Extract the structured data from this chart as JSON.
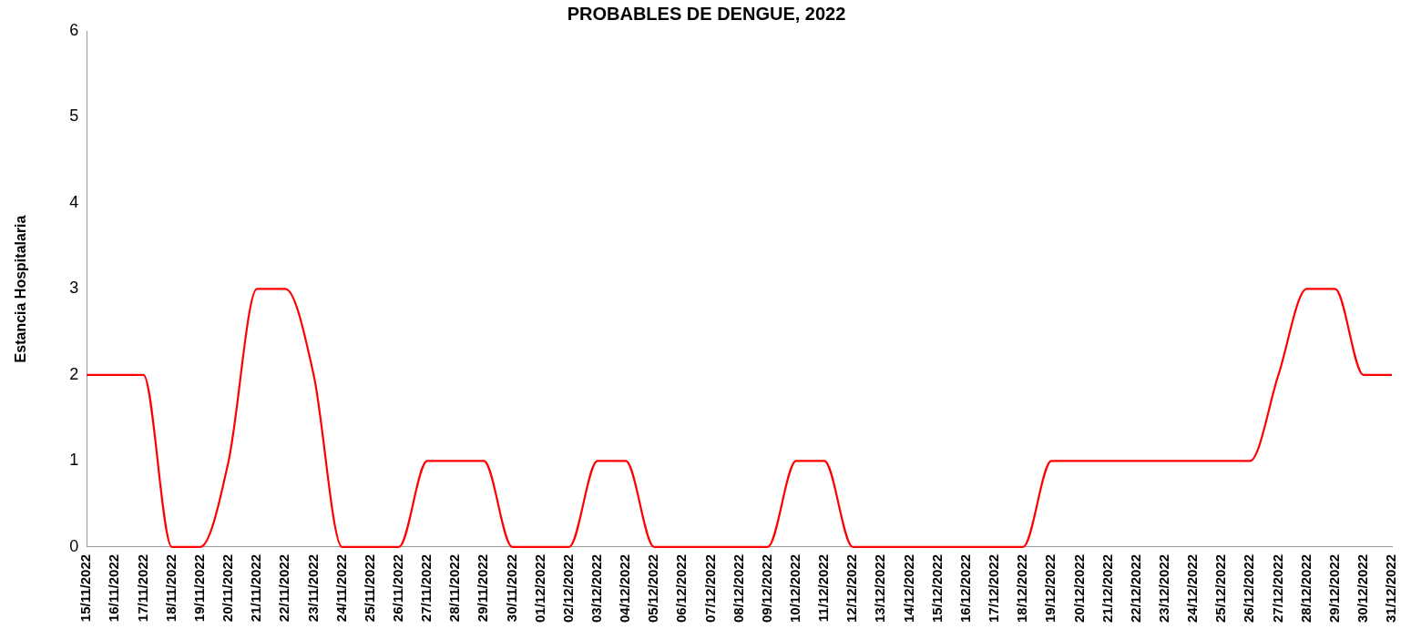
{
  "chart_data": {
    "type": "line",
    "title": "PROBABLES DE DENGUE, 2022",
    "ylabel": "Estancia Hospitalaria",
    "categories": [
      "15/11/2022",
      "16/11/2022",
      "17/11/2022",
      "18/11/2022",
      "19/11/2022",
      "20/11/2022",
      "21/11/2022",
      "22/11/2022",
      "23/11/2022",
      "24/11/2022",
      "25/11/2022",
      "26/11/2022",
      "27/11/2022",
      "28/11/2022",
      "29/11/2022",
      "30/11/2022",
      "01/12/2022",
      "02/12/2022",
      "03/12/2022",
      "04/12/2022",
      "05/12/2022",
      "06/12/2022",
      "07/12/2022",
      "08/12/2022",
      "09/12/2022",
      "10/12/2022",
      "11/12/2022",
      "12/12/2022",
      "13/12/2022",
      "14/12/2022",
      "15/12/2022",
      "16/12/2022",
      "17/12/2022",
      "18/12/2022",
      "19/12/2022",
      "20/12/2022",
      "21/12/2022",
      "22/12/2022",
      "23/12/2022",
      "24/12/2022",
      "25/12/2022",
      "26/12/2022",
      "27/12/2022",
      "28/12/2022",
      "29/12/2022",
      "30/12/2022",
      "31/12/2022"
    ],
    "series": [
      {
        "color": "#ff0000",
        "values": [
          2,
          2,
          2,
          0,
          0,
          1,
          3,
          3,
          2,
          0,
          0,
          0,
          1,
          1,
          1,
          0,
          0,
          0,
          1,
          1,
          0,
          0,
          0,
          0,
          0,
          1,
          1,
          0,
          0,
          0,
          0,
          0,
          0,
          0,
          1,
          1,
          1,
          1,
          1,
          1,
          1,
          1,
          2,
          3,
          3,
          2,
          2
        ]
      }
    ],
    "ylim": [
      0,
      6
    ],
    "yticks": [
      0,
      1,
      2,
      3,
      4,
      5,
      6
    ],
    "grid": false,
    "legend": false,
    "marker": "none",
    "line_style": "solid"
  }
}
